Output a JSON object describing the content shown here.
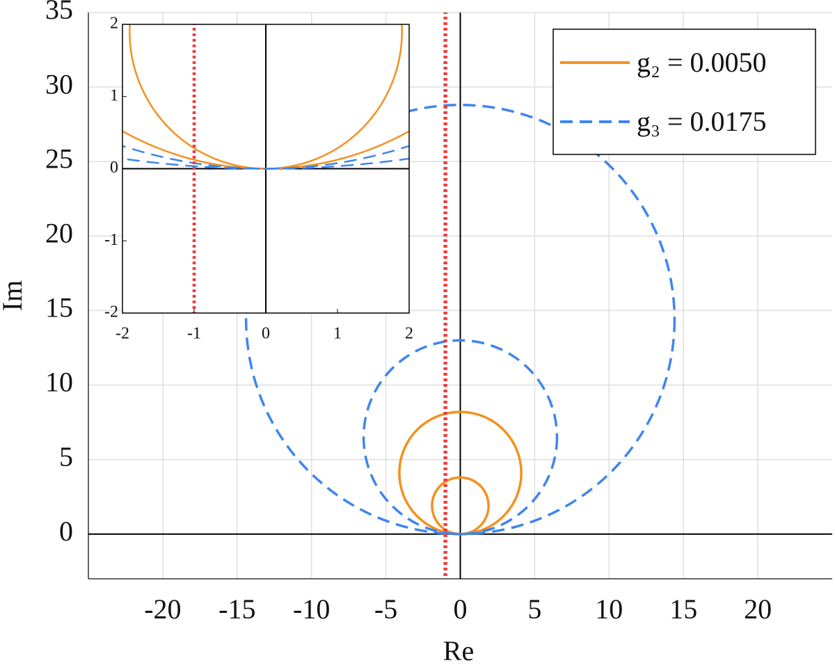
{
  "chart_data": {
    "type": "circle",
    "x_label": "Re",
    "y_label": "Im",
    "xlim": [
      -25,
      25
    ],
    "ylim": [
      -3,
      35
    ],
    "xticks": [
      -20,
      -15,
      -10,
      -5,
      0,
      5,
      10,
      15,
      20
    ],
    "yticks": [
      0,
      5,
      10,
      15,
      20,
      25,
      30,
      35
    ],
    "grid": true,
    "legend": "upper right",
    "reference_x": -1,
    "reference_color": "#f03c3c",
    "series": [
      {
        "name": "g₂ = 0.0050",
        "color": "#f5901e",
        "style": "solid",
        "radii": [
          1.9,
          4.1
        ]
      },
      {
        "name": "g₃ = 0.0175",
        "color": "#3d85f0",
        "style": "dashed",
        "radii": [
          6.5,
          14.4
        ]
      }
    ],
    "inset": {
      "xlim": [
        -2,
        2
      ],
      "ylim": [
        -2,
        2
      ],
      "xticks": [
        -2,
        -1,
        0,
        1,
        2
      ],
      "yticks": [
        -2,
        -1,
        0,
        1,
        2
      ]
    }
  }
}
